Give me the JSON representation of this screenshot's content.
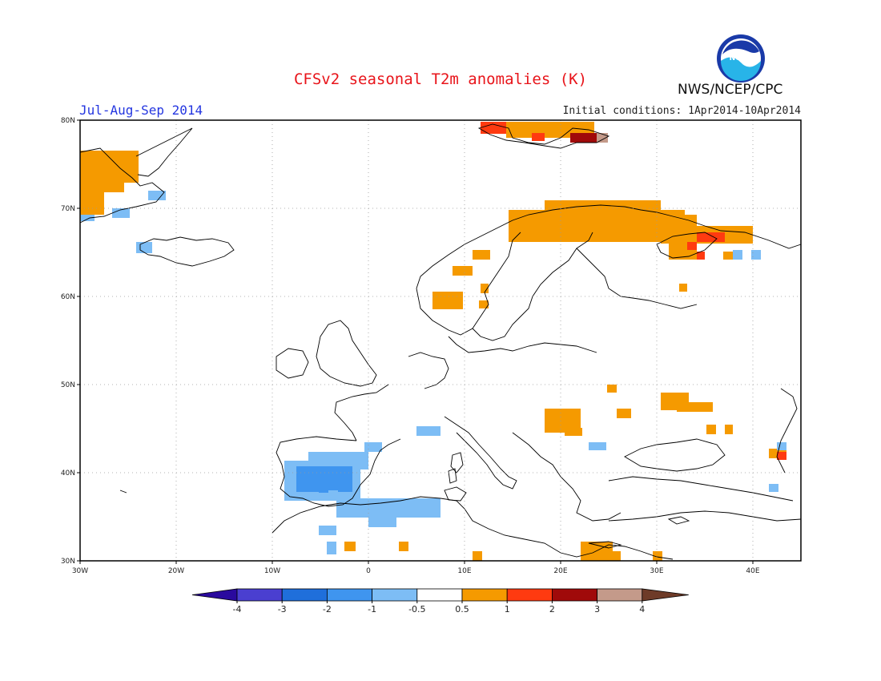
{
  "header": {
    "title": "CFSv2 seasonal T2m anomalies (K)",
    "period": "Jul-Aug-Sep 2014",
    "initial_conditions": "Initial conditions: 1Apr2014-10Apr2014",
    "agency": "NWS/NCEP/CPC",
    "logo_text": "NOAA"
  },
  "axes": {
    "lat_labels": [
      "80N",
      "70N",
      "60N",
      "50N",
      "40N",
      "30N"
    ],
    "lon_labels": [
      "30W",
      "20W",
      "10W",
      "0",
      "10E",
      "20E",
      "30E",
      "40E"
    ]
  },
  "legend": {
    "tick_labels": [
      "-4",
      "-3",
      "-2",
      "-1",
      "-0.5",
      "0.5",
      "1",
      "2",
      "3",
      "4"
    ],
    "colors": [
      "#2a0a9e",
      "#4a3fd0",
      "#1f6fdb",
      "#3f95ef",
      "#7dbdf5",
      "#ffffff",
      "#f59a00",
      "#ff3a10",
      "#a00a0a",
      "#c49a8a",
      "#6e3b28"
    ]
  },
  "colors": {
    "coast": "#000000",
    "grid": "#9a9a9a",
    "frame": "#000000"
  },
  "map_extent": {
    "lon_range": [
      -30,
      45
    ],
    "lat_range": [
      30,
      80
    ]
  }
}
